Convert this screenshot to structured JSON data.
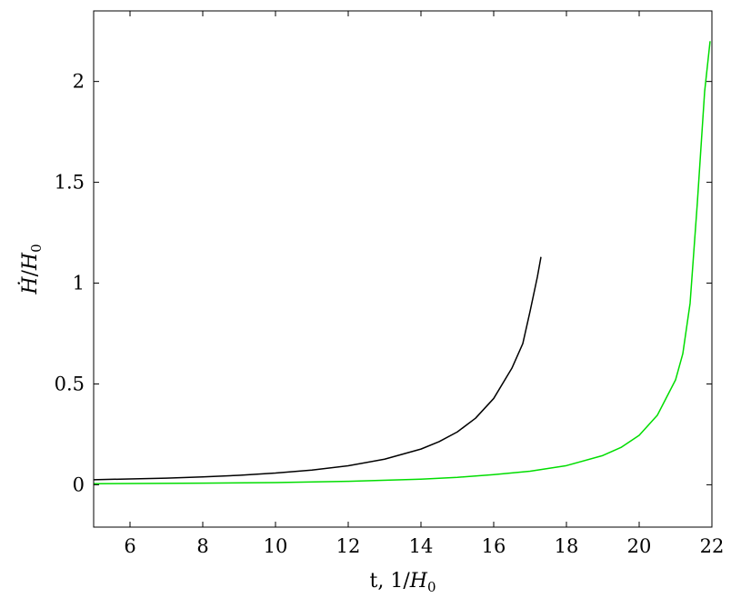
{
  "chart_data": {
    "type": "line",
    "xlabel": {
      "prefix": "t, 1/",
      "var": "H",
      "sub": "0"
    },
    "ylabel": {
      "var": "Ḣ",
      "mid": "/",
      "var2": "H",
      "sub": "0"
    },
    "xlim": [
      5,
      22
    ],
    "ylim": [
      -0.21,
      2.35
    ],
    "xticks": [
      6,
      8,
      10,
      12,
      14,
      16,
      18,
      20,
      22
    ],
    "yticks": [
      0,
      0.5,
      1,
      1.5,
      2
    ],
    "ytick_labels": [
      "0",
      "0.5",
      "1",
      "1.5",
      "2"
    ],
    "grid": false,
    "legend": "none",
    "series": [
      {
        "color": "#000000",
        "points": [
          [
            5,
            0.025
          ],
          [
            6,
            0.029
          ],
          [
            7,
            0.033
          ],
          [
            8,
            0.039
          ],
          [
            9,
            0.047
          ],
          [
            10,
            0.058
          ],
          [
            11,
            0.073
          ],
          [
            12,
            0.094
          ],
          [
            13,
            0.127
          ],
          [
            14,
            0.177
          ],
          [
            14.5,
            0.214
          ],
          [
            15,
            0.262
          ],
          [
            15.5,
            0.33
          ],
          [
            16,
            0.428
          ],
          [
            16.5,
            0.578
          ],
          [
            16.8,
            0.7
          ],
          [
            17.0,
            0.86
          ],
          [
            17.2,
            1.03
          ],
          [
            17.3,
            1.13
          ]
        ]
      },
      {
        "color": "#00dd00",
        "points": [
          [
            5,
            0.005
          ],
          [
            8,
            0.008
          ],
          [
            10,
            0.011
          ],
          [
            12,
            0.017
          ],
          [
            14,
            0.028
          ],
          [
            15,
            0.037
          ],
          [
            16,
            0.05
          ],
          [
            17,
            0.067
          ],
          [
            18,
            0.095
          ],
          [
            19,
            0.145
          ],
          [
            19.5,
            0.185
          ],
          [
            20,
            0.245
          ],
          [
            20.5,
            0.345
          ],
          [
            21,
            0.52
          ],
          [
            21.2,
            0.65
          ],
          [
            21.4,
            0.9
          ],
          [
            21.6,
            1.4
          ],
          [
            21.8,
            1.95
          ],
          [
            21.95,
            2.2
          ]
        ]
      }
    ]
  }
}
